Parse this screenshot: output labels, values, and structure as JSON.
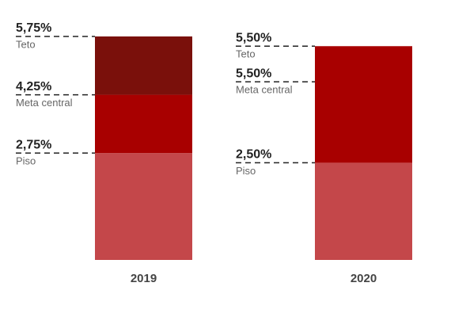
{
  "chart_data": {
    "type": "bar",
    "categories": [
      "2019",
      "2020"
    ],
    "series": [
      {
        "name": "Piso",
        "color": "#c4474a",
        "values": [
          2.75,
          2.5
        ],
        "value_labels": [
          "2,75%",
          "2,50%"
        ]
      },
      {
        "name": "Meta central",
        "color": "#a80000",
        "values": [
          4.25,
          5.5
        ],
        "value_labels": [
          "4,25%",
          "5,50%"
        ]
      },
      {
        "name": "Teto",
        "color": "#7a100b",
        "values": [
          5.75,
          5.5
        ],
        "value_labels": [
          "5,75%",
          "5,50%"
        ]
      }
    ]
  }
}
